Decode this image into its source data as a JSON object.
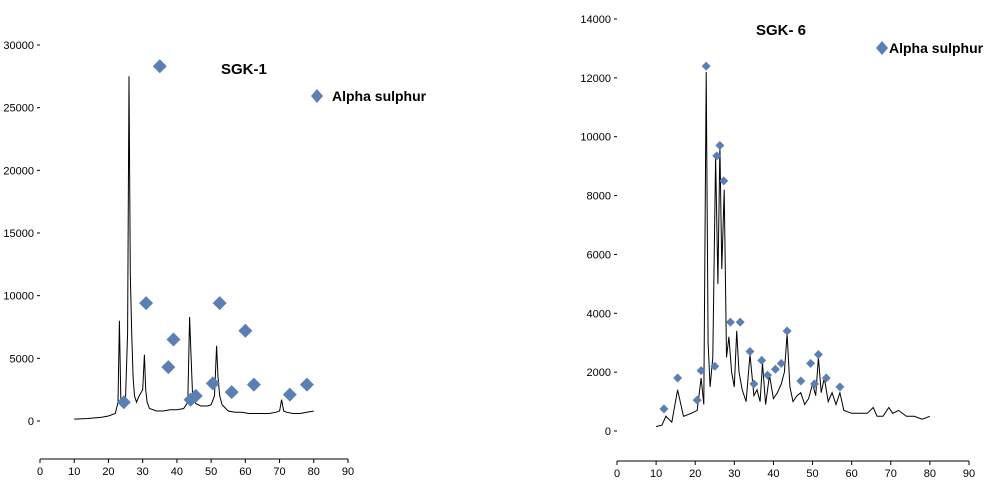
{
  "chart_data": [
    {
      "type": "line",
      "title": "SGK-1",
      "legend": "Alpha sulphur",
      "legend_color": "#5b7fb3",
      "line_color": "#000000",
      "xlim": [
        0,
        90
      ],
      "ylim": [
        0,
        30000
      ],
      "xticks": [
        0,
        10,
        20,
        30,
        40,
        50,
        60,
        70,
        80,
        90
      ],
      "yticks": [
        0,
        5000,
        10000,
        15000,
        20000,
        25000,
        30000
      ],
      "x_tick_labels": [
        "0",
        "10",
        "20",
        "30",
        "40",
        "50",
        "60",
        "70",
        "80",
        "90"
      ],
      "y_tick_labels": [
        "0",
        "5000",
        "10000",
        "15000",
        "20000",
        "25000",
        "30000"
      ],
      "series": [
        {
          "x": [
            10,
            14,
            18,
            20,
            22,
            22.8,
            23.2,
            23.6,
            24.2,
            25,
            25.6,
            26,
            26.4,
            26.8,
            27.2,
            27.6,
            28.2,
            29,
            30,
            30.5,
            30.9,
            31.3,
            32,
            34,
            36,
            38,
            40,
            42,
            43.2,
            43.7,
            44.1,
            44.6,
            45.5,
            47,
            49,
            50,
            51,
            51.6,
            52,
            52.5,
            53.2,
            55,
            57,
            59,
            61,
            63,
            65,
            67,
            69,
            70,
            70.6,
            71.2,
            72,
            74,
            76,
            78,
            80
          ],
          "y": [
            150,
            200,
            300,
            400,
            600,
            1500,
            8000,
            1800,
            1200,
            2000,
            7000,
            27500,
            11700,
            7000,
            3500,
            2000,
            1500,
            2000,
            2500,
            5300,
            2500,
            1500,
            1000,
            800,
            800,
            900,
            900,
            1000,
            1500,
            8300,
            5500,
            2000,
            1400,
            1200,
            1200,
            1300,
            2000,
            6000,
            3500,
            2000,
            1300,
            800,
            700,
            700,
            600,
            600,
            600,
            600,
            700,
            800,
            1700,
            800,
            700,
            600,
            600,
            700,
            800
          ]
        }
      ],
      "markers": {
        "x": [
          24.5,
          35,
          31,
          39,
          37.5,
          44,
          45.5,
          50.5,
          52.5,
          56,
          60,
          62.5,
          73,
          78
        ],
        "y": [
          1500,
          28300,
          9400,
          6500,
          4300,
          1700,
          2000,
          3000,
          9400,
          2300,
          7200,
          2900,
          2100,
          2900
        ]
      }
    },
    {
      "type": "line",
      "title": "SGK- 6",
      "legend": "Alpha sulphur",
      "legend_color": "#5b7fb3",
      "line_color": "#000000",
      "xlim": [
        0,
        90
      ],
      "ylim": [
        0,
        14000
      ],
      "xticks": [
        0,
        10,
        20,
        30,
        40,
        50,
        60,
        70,
        80,
        90
      ],
      "yticks": [
        0,
        2000,
        4000,
        6000,
        8000,
        10000,
        12000,
        14000
      ],
      "x_tick_labels": [
        "0",
        "10",
        "20",
        "30",
        "40",
        "50",
        "60",
        "70",
        "80",
        "90"
      ],
      "y_tick_labels": [
        "0",
        "2000",
        "4000",
        "6000",
        "8000",
        "10000",
        "12000",
        "14000"
      ],
      "series": [
        {
          "x": [
            10,
            11.5,
            12.5,
            14,
            15.5,
            17,
            19,
            20.5,
            21.5,
            22.2,
            22.8,
            23.3,
            23.8,
            24.5,
            25.2,
            25.8,
            26.3,
            26.8,
            27.4,
            28,
            28.6,
            29.3,
            30,
            30.6,
            31.2,
            32,
            33,
            34,
            35,
            35.8,
            36.6,
            37.2,
            38,
            39,
            40,
            41,
            42,
            42.8,
            43.5,
            44.2,
            45,
            46,
            47,
            48,
            49,
            50,
            50.8,
            51.5,
            52.2,
            53,
            54,
            55,
            56,
            57,
            58,
            60,
            62,
            64,
            65.5,
            66.5,
            68,
            69.5,
            70.5,
            72,
            74,
            76,
            78,
            80
          ],
          "y": [
            150,
            200,
            500,
            300,
            1400,
            500,
            600,
            700,
            1800,
            900,
            12200,
            3000,
            1500,
            2500,
            9300,
            5000,
            9700,
            5500,
            8200,
            2500,
            3200,
            2000,
            1500,
            3400,
            2000,
            1400,
            1000,
            2600,
            1200,
            1400,
            1000,
            2300,
            900,
            1900,
            1100,
            1300,
            1600,
            2000,
            3300,
            1500,
            1000,
            1200,
            1300,
            900,
            1100,
            1600,
            1200,
            2500,
            1300,
            1800,
            1000,
            1300,
            900,
            1300,
            700,
            600,
            600,
            600,
            800,
            500,
            500,
            800,
            600,
            700,
            500,
            500,
            400,
            500
          ]
        }
      ],
      "markers": {
        "x": [
          12,
          15.5,
          20.5,
          21.5,
          22.8,
          25,
          25.5,
          26.3,
          27.3,
          29,
          31.5,
          34,
          35,
          37,
          38.5,
          40.5,
          42,
          43.5,
          47,
          49.5,
          50.5,
          51.5,
          53.5,
          57
        ],
        "y": [
          750,
          1800,
          1050,
          2050,
          12400,
          2200,
          9350,
          9700,
          8500,
          3700,
          3700,
          2700,
          1600,
          2400,
          1900,
          2100,
          2300,
          3400,
          1700,
          2300,
          1600,
          2600,
          1800,
          1500
        ]
      }
    }
  ]
}
